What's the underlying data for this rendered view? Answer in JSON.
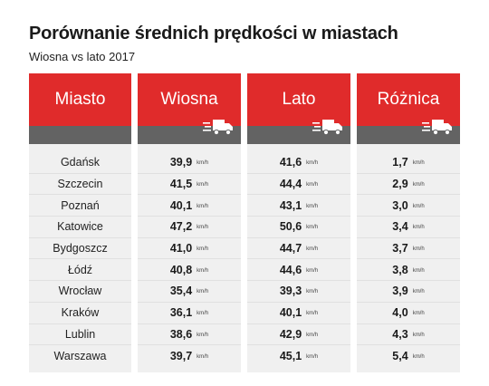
{
  "title": "Porównanie średnich prędkości w miastach",
  "subtitle": "Wiosna vs lato 2017",
  "icons": {
    "truck": "delivery-truck-icon"
  },
  "colors": {
    "header": "#e02b2b",
    "band": "#636363",
    "column_bg": "#f0f0f0"
  },
  "chart_data": {
    "type": "table",
    "title": "Porównanie średnich prędkości w miastach",
    "subtitle": "Wiosna vs lato 2017",
    "columns": [
      "Miasto",
      "Wiosna",
      "Lato",
      "Różnica"
    ],
    "unit": "km/h",
    "rows": [
      {
        "city": "Gdańsk",
        "spring": "39,9",
        "summer": "41,6",
        "diff": "1,7"
      },
      {
        "city": "Szczecin",
        "spring": "41,5",
        "summer": "44,4",
        "diff": "2,9"
      },
      {
        "city": "Poznań",
        "spring": "40,1",
        "summer": "43,1",
        "diff": "3,0"
      },
      {
        "city": "Katowice",
        "spring": "47,2",
        "summer": "50,6",
        "diff": "3,4"
      },
      {
        "city": "Bydgoszcz",
        "spring": "41,0",
        "summer": "44,7",
        "diff": "3,7"
      },
      {
        "city": "Łódź",
        "spring": "40,8",
        "summer": "44,6",
        "diff": "3,8"
      },
      {
        "city": "Wrocław",
        "spring": "35,4",
        "summer": "39,3",
        "diff": "3,9"
      },
      {
        "city": "Kraków",
        "spring": "36,1",
        "summer": "40,1",
        "diff": "4,0"
      },
      {
        "city": "Lublin",
        "spring": "38,6",
        "summer": "42,9",
        "diff": "4,3"
      },
      {
        "city": "Warszawa",
        "spring": "39,7",
        "summer": "45,1",
        "diff": "5,4"
      }
    ]
  }
}
